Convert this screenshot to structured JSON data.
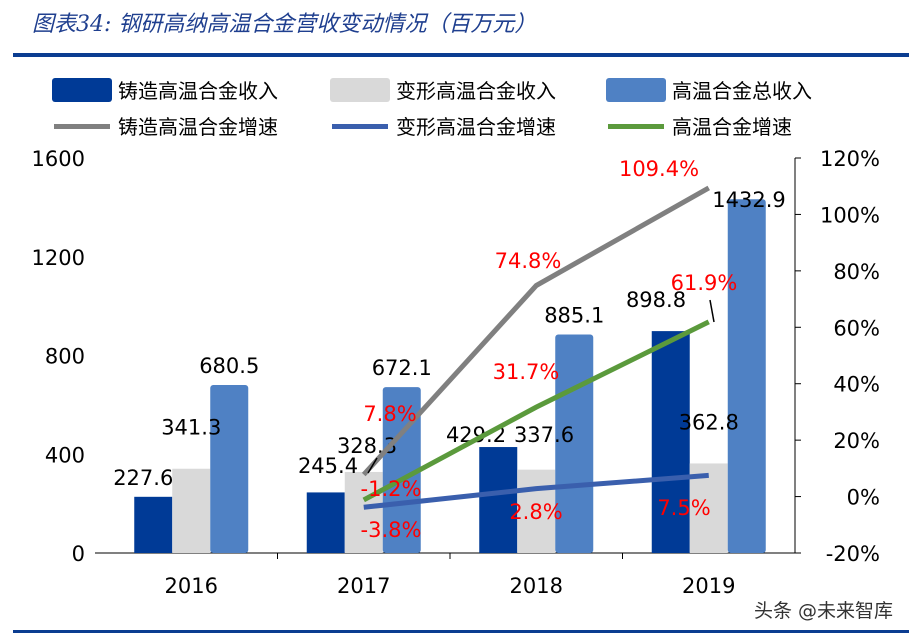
{
  "title": "图表34: 钢研高纳高温合金营收变动情况（百万元）",
  "watermark": "头条 @未来智库",
  "chart_data": {
    "type": "bar",
    "categories": [
      "2016",
      "2017",
      "2018",
      "2019"
    ],
    "left_axis": {
      "ylim": [
        0,
        1600
      ],
      "ticks": [
        "0",
        "400",
        "800",
        "1200",
        "1600"
      ]
    },
    "right_axis": {
      "ylim": [
        -20,
        120
      ],
      "ticks": [
        "-20%",
        "0%",
        "20%",
        "40%",
        "60%",
        "80%",
        "100%",
        "120%"
      ]
    },
    "grid": false,
    "legend_position": "top",
    "series": [
      {
        "name": "铸造高温合金收入",
        "kind": "bar",
        "color": "#003a96",
        "values": [
          227.6,
          245.4,
          429.2,
          898.8
        ],
        "labels": [
          "227.6",
          "245.4",
          "429.2",
          "898.8"
        ]
      },
      {
        "name": "变形高温合金收入",
        "kind": "bar",
        "color": "#d9d9d9",
        "values": [
          341.3,
          328.3,
          337.6,
          362.8
        ],
        "labels": [
          "341.3",
          "328.3",
          "337.6",
          "362.8"
        ]
      },
      {
        "name": "高温合金总收入",
        "kind": "bar",
        "color": "#4f81c4",
        "values": [
          680.5,
          672.1,
          885.1,
          1432.9
        ],
        "labels": [
          "680.5",
          "672.1",
          "885.1",
          "1432.9"
        ]
      },
      {
        "name": "铸造高温合金增速",
        "kind": "line",
        "axis": "right",
        "color": "#808080",
        "values": [
          null,
          7.8,
          74.8,
          109.4
        ],
        "labels": [
          "",
          "7.8%",
          "74.8%",
          "109.4%"
        ]
      },
      {
        "name": "变形高温合金增速",
        "kind": "line",
        "axis": "right",
        "color": "#3a5fad",
        "values": [
          null,
          -3.8,
          2.8,
          7.5
        ],
        "labels": [
          "",
          "-3.8%",
          "2.8%",
          "7.5%"
        ]
      },
      {
        "name": "高温合金增速",
        "kind": "line",
        "axis": "right",
        "color": "#5b9a3c",
        "values": [
          null,
          -1.2,
          31.7,
          61.9
        ],
        "labels": [
          "",
          "-1.2%",
          "31.7%",
          "61.9%"
        ]
      }
    ]
  }
}
